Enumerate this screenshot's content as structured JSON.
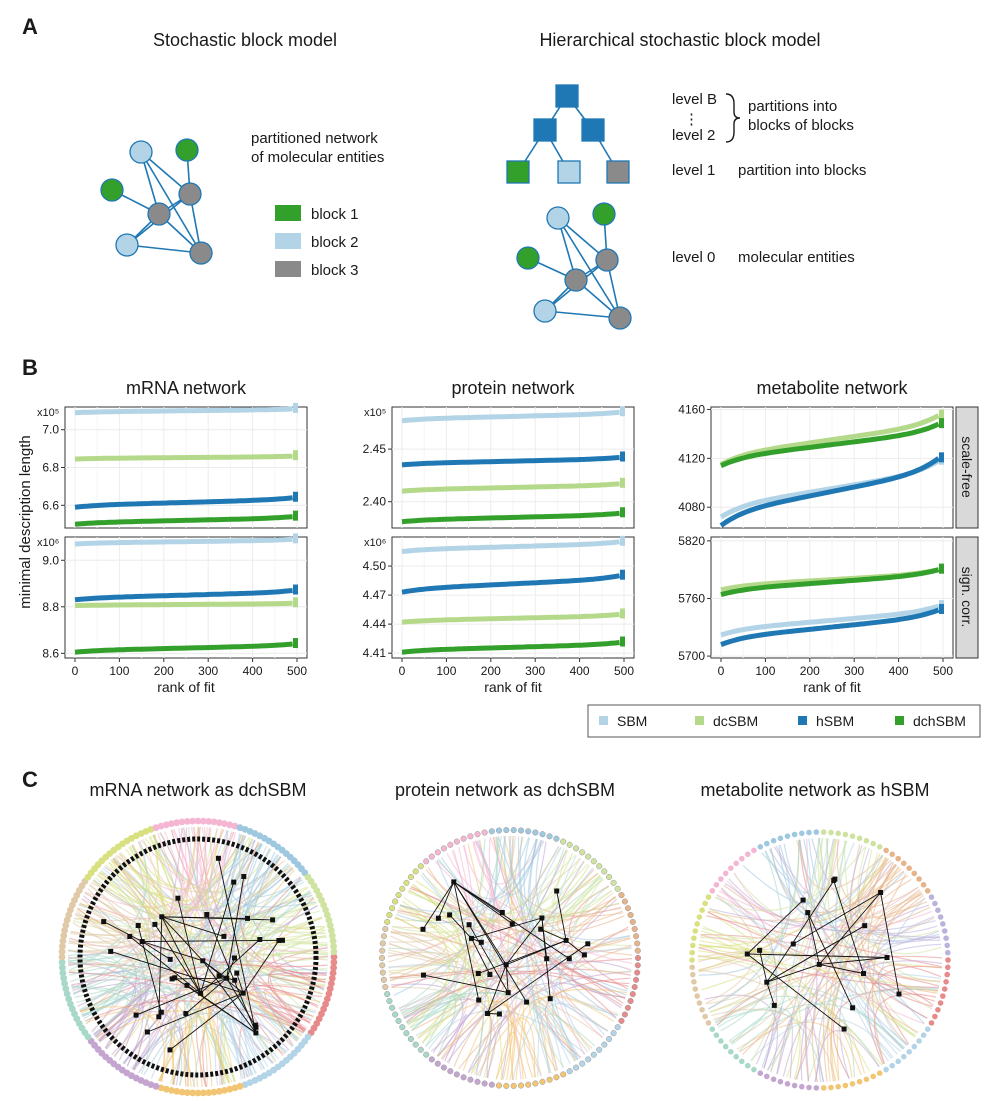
{
  "colors": {
    "sbm": "#b3d4e6",
    "dcsbm": "#b5d98a",
    "hsbm": "#1f78b4",
    "dchsbm": "#33a02c",
    "grey": "#8a8a8a",
    "edge": "#1f78b4",
    "strip_bg": "#d9d9d9"
  },
  "panels": {
    "a": "A",
    "b": "B",
    "c": "C"
  },
  "panel_a": {
    "sbm_title": "Stochastic block model",
    "hsbm_title": "Hierarchical stochastic block model",
    "network_note_line1": "partitioned network",
    "network_note_line2": "of molecular entities",
    "legend": [
      "block 1",
      "block 2",
      "block 3"
    ],
    "level_b": "level B",
    "level_2": "level 2",
    "level_dots": "⋮",
    "blocks_of_blocks_line1": "partitions into",
    "blocks_of_blocks_line2": "blocks of blocks",
    "level_1": "level 1",
    "level_1_desc": "partition into blocks",
    "level_0": "level 0",
    "level_0_desc": "molecular entities"
  },
  "panel_b": {
    "ylabel": "minimal description length",
    "xlabel": "rank of fit",
    "row_strips": [
      "scale-free",
      "sign. corr."
    ],
    "legend": [
      "SBM",
      "dcSBM",
      "hSBM",
      "dchSBM"
    ]
  },
  "chart_data": [
    {
      "type": "scatter",
      "title": "mRNA network",
      "row": "scale-free",
      "multiplier": "x10⁵",
      "xlim": [
        0,
        500
      ],
      "ylim": [
        6.48,
        7.12
      ],
      "xticks": [
        "0",
        "100",
        "200",
        "300",
        "400",
        "500"
      ],
      "yticks": [
        {
          "v": 6.6,
          "l": "6.6"
        },
        {
          "v": 6.8,
          "l": "6.8"
        },
        {
          "v": 7.0,
          "l": "7.0"
        }
      ],
      "series": [
        {
          "name": "SBM",
          "start": 7.09,
          "end": 7.11
        },
        {
          "name": "dcSBM",
          "start": 6.845,
          "end": 6.86
        },
        {
          "name": "hSBM",
          "start": 6.59,
          "end": 6.64
        },
        {
          "name": "dchSBM",
          "start": 6.5,
          "end": 6.54
        }
      ]
    },
    {
      "type": "scatter",
      "title": "protein network",
      "row": "scale-free",
      "multiplier": "x10⁵",
      "xlim": [
        0,
        500
      ],
      "ylim": [
        2.375,
        2.49
      ],
      "xticks": [
        "0",
        "100",
        "200",
        "300",
        "400",
        "500"
      ],
      "yticks": [
        {
          "v": 2.4,
          "l": "2.40"
        },
        {
          "v": 2.45,
          "l": "2.45"
        }
      ],
      "series": [
        {
          "name": "SBM",
          "start": 2.477,
          "end": 2.485
        },
        {
          "name": "dcSBM",
          "start": 2.41,
          "end": 2.417
        },
        {
          "name": "hSBM",
          "start": 2.435,
          "end": 2.442
        },
        {
          "name": "dchSBM",
          "start": 2.381,
          "end": 2.389
        }
      ]
    },
    {
      "type": "scatter",
      "title": "metabolite network",
      "row": "scale-free",
      "multiplier": "",
      "xlim": [
        0,
        500
      ],
      "ylim": [
        4063,
        4162
      ],
      "xticks": [
        "0",
        "100",
        "200",
        "300",
        "400",
        "500"
      ],
      "yticks": [
        {
          "v": 4080,
          "l": "4080"
        },
        {
          "v": 4120,
          "l": "4120"
        },
        {
          "v": 4160,
          "l": "4160"
        }
      ],
      "series": [
        {
          "name": "SBM",
          "start": 4072,
          "end": 4118
        },
        {
          "name": "dcSBM",
          "start": 4115,
          "end": 4155
        },
        {
          "name": "hSBM",
          "start": 4065,
          "end": 4120
        },
        {
          "name": "dchSBM",
          "start": 4114,
          "end": 4148
        }
      ]
    },
    {
      "type": "scatter",
      "title": "",
      "row": "sign. corr.",
      "multiplier": "x10⁶",
      "xlim": [
        0,
        500
      ],
      "ylim": [
        8.58,
        9.1
      ],
      "xticks": [
        "0",
        "100",
        "200",
        "300",
        "400",
        "500"
      ],
      "yticks": [
        {
          "v": 8.6,
          "l": "8.6"
        },
        {
          "v": 8.8,
          "l": "8.8"
        },
        {
          "v": 9.0,
          "l": "9.0"
        }
      ],
      "series": [
        {
          "name": "SBM",
          "start": 9.07,
          "end": 9.09
        },
        {
          "name": "dcSBM",
          "start": 8.805,
          "end": 8.815
        },
        {
          "name": "hSBM",
          "start": 8.83,
          "end": 8.87
        },
        {
          "name": "dchSBM",
          "start": 8.605,
          "end": 8.64
        }
      ]
    },
    {
      "type": "scatter",
      "title": "",
      "row": "sign. corr.",
      "multiplier": "x10⁶",
      "xlim": [
        0,
        500
      ],
      "ylim": [
        4.405,
        4.53
      ],
      "xticks": [
        "0",
        "100",
        "200",
        "300",
        "400",
        "500"
      ],
      "yticks": [
        {
          "v": 4.41,
          "l": "4.41"
        },
        {
          "v": 4.44,
          "l": "4.44"
        },
        {
          "v": 4.47,
          "l": "4.47"
        },
        {
          "v": 4.5,
          "l": "4.50"
        }
      ],
      "series": [
        {
          "name": "SBM",
          "start": 4.515,
          "end": 4.525
        },
        {
          "name": "dcSBM",
          "start": 4.442,
          "end": 4.45
        },
        {
          "name": "hSBM",
          "start": 4.473,
          "end": 4.49
        },
        {
          "name": "dchSBM",
          "start": 4.411,
          "end": 4.421
        }
      ]
    },
    {
      "type": "scatter",
      "title": "",
      "row": "sign. corr.",
      "multiplier": "",
      "xlim": [
        0,
        500
      ],
      "ylim": [
        5698,
        5824
      ],
      "xticks": [
        "0",
        "100",
        "200",
        "300",
        "400",
        "500"
      ],
      "yticks": [
        {
          "v": 5700,
          "l": "5700"
        },
        {
          "v": 5760,
          "l": "5760"
        },
        {
          "v": 5820,
          "l": "5820"
        }
      ],
      "series": [
        {
          "name": "SBM",
          "start": 5722,
          "end": 5752
        },
        {
          "name": "dcSBM",
          "start": 5769,
          "end": 5790
        },
        {
          "name": "hSBM",
          "start": 5712,
          "end": 5748
        },
        {
          "name": "dchSBM",
          "start": 5764,
          "end": 5790
        }
      ]
    }
  ],
  "panel_c": {
    "titles": [
      "mRNA network as dchSBM",
      "protein network as dchSBM",
      "metabolite network as hSBM"
    ]
  }
}
